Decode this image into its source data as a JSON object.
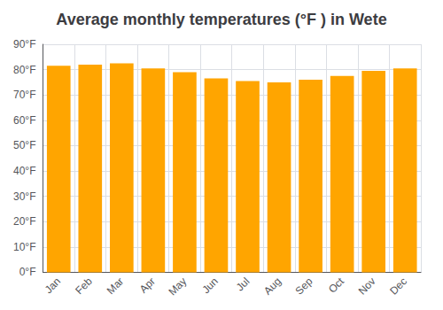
{
  "chart_data": {
    "type": "bar",
    "title": "Average monthly temperatures (°F ) in Wete",
    "categories": [
      "Jan",
      "Feb",
      "Mar",
      "Apr",
      "May",
      "Jun",
      "Jul",
      "Aug",
      "Sep",
      "Oct",
      "Nov",
      "Dec"
    ],
    "values": [
      81.5,
      82.0,
      82.5,
      80.5,
      79.0,
      76.5,
      75.5,
      75.0,
      76.0,
      77.5,
      79.5,
      80.5
    ],
    "color": "#FFA500",
    "ylim": [
      0,
      90
    ],
    "yticks": [
      {
        "value": 0,
        "label": "0°F"
      },
      {
        "value": 10,
        "label": "10°F"
      },
      {
        "value": 20,
        "label": "20°F"
      },
      {
        "value": 30,
        "label": "30°F"
      },
      {
        "value": 40,
        "label": "40°F"
      },
      {
        "value": 50,
        "label": "50°F"
      },
      {
        "value": 60,
        "label": "60°F"
      },
      {
        "value": 70,
        "label": "70°F"
      },
      {
        "value": 80,
        "label": "80°F"
      },
      {
        "value": 90,
        "label": "90°F"
      }
    ],
    "grid": true
  }
}
